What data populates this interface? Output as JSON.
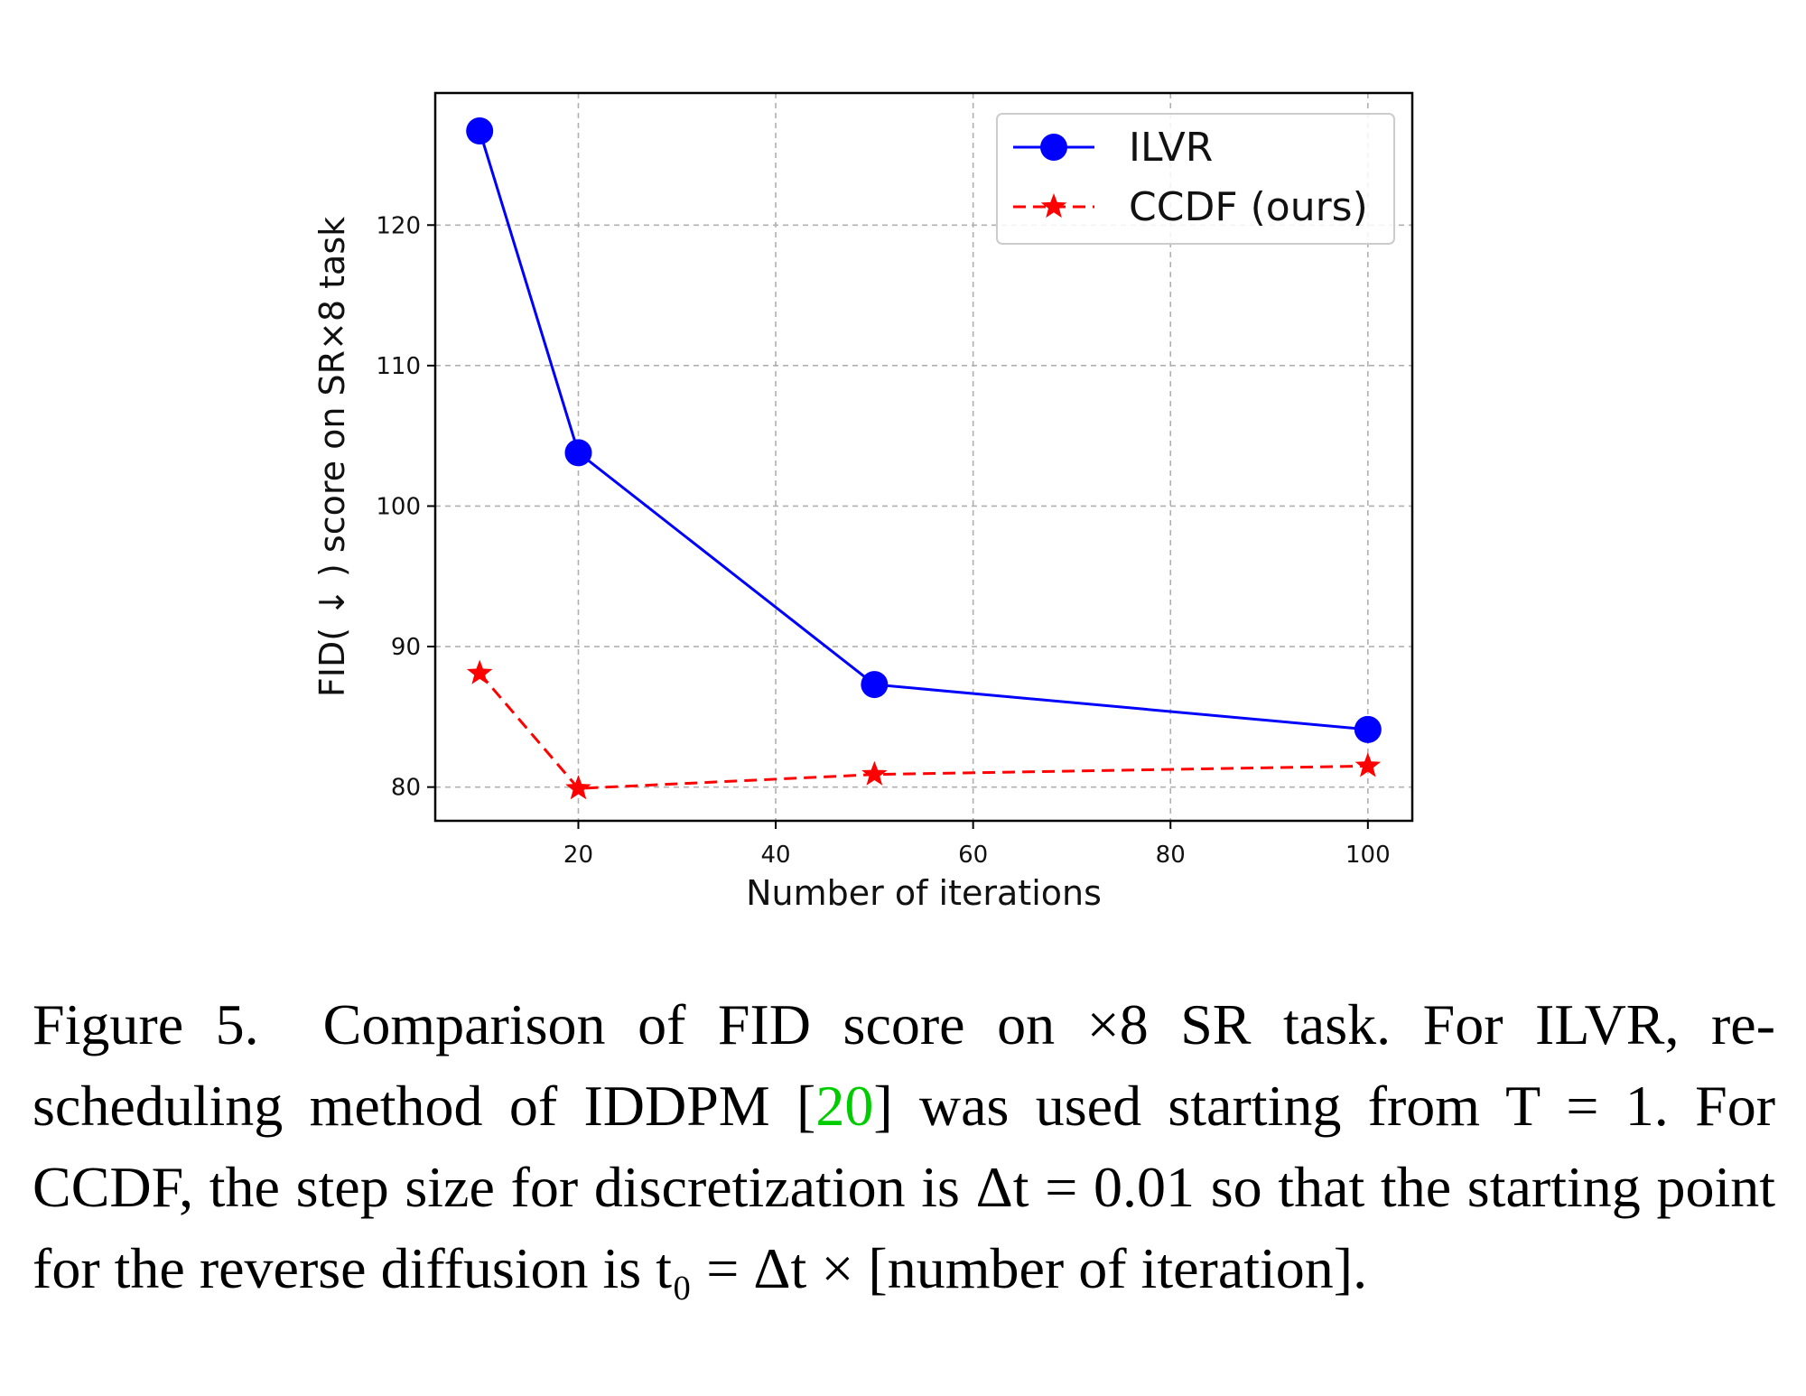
{
  "chart_data": {
    "type": "line",
    "xlabel": "Number of iterations",
    "ylabel": "FID( ↓ ) score on SR×8 task",
    "xlim": [
      5.5,
      104.5
    ],
    "ylim": [
      77.6,
      129.4
    ],
    "xticks": [
      20,
      40,
      60,
      80,
      100
    ],
    "yticks": [
      80,
      90,
      100,
      110,
      120
    ],
    "grid": true,
    "legend_position": "top-right",
    "series": [
      {
        "name": "ILVR",
        "color": "#0000ff",
        "marker": "circle",
        "linestyle": "solid",
        "x": [
          10,
          20,
          50,
          100
        ],
        "y": [
          126.7,
          103.8,
          87.3,
          84.1
        ]
      },
      {
        "name": "CCDF (ours)",
        "color": "#ff0000",
        "marker": "star",
        "linestyle": "dashed",
        "x": [
          10,
          20,
          50,
          100
        ],
        "y": [
          88.1,
          79.9,
          80.9,
          81.5
        ]
      }
    ]
  },
  "caption": {
    "figure_label": "Figure 5.",
    "part1": "Comparison of FID score on ×8 SR task. For ILVR, re-scheduling method of IDDPM [",
    "ref": "20",
    "part2": "] was used starting from",
    "part3": "T = 1. For CCDF, the step size for discretization is Δt = 0.01 so that the starting point for the reverse diffusion is t₀ = Δt × [number of iteration]."
  }
}
